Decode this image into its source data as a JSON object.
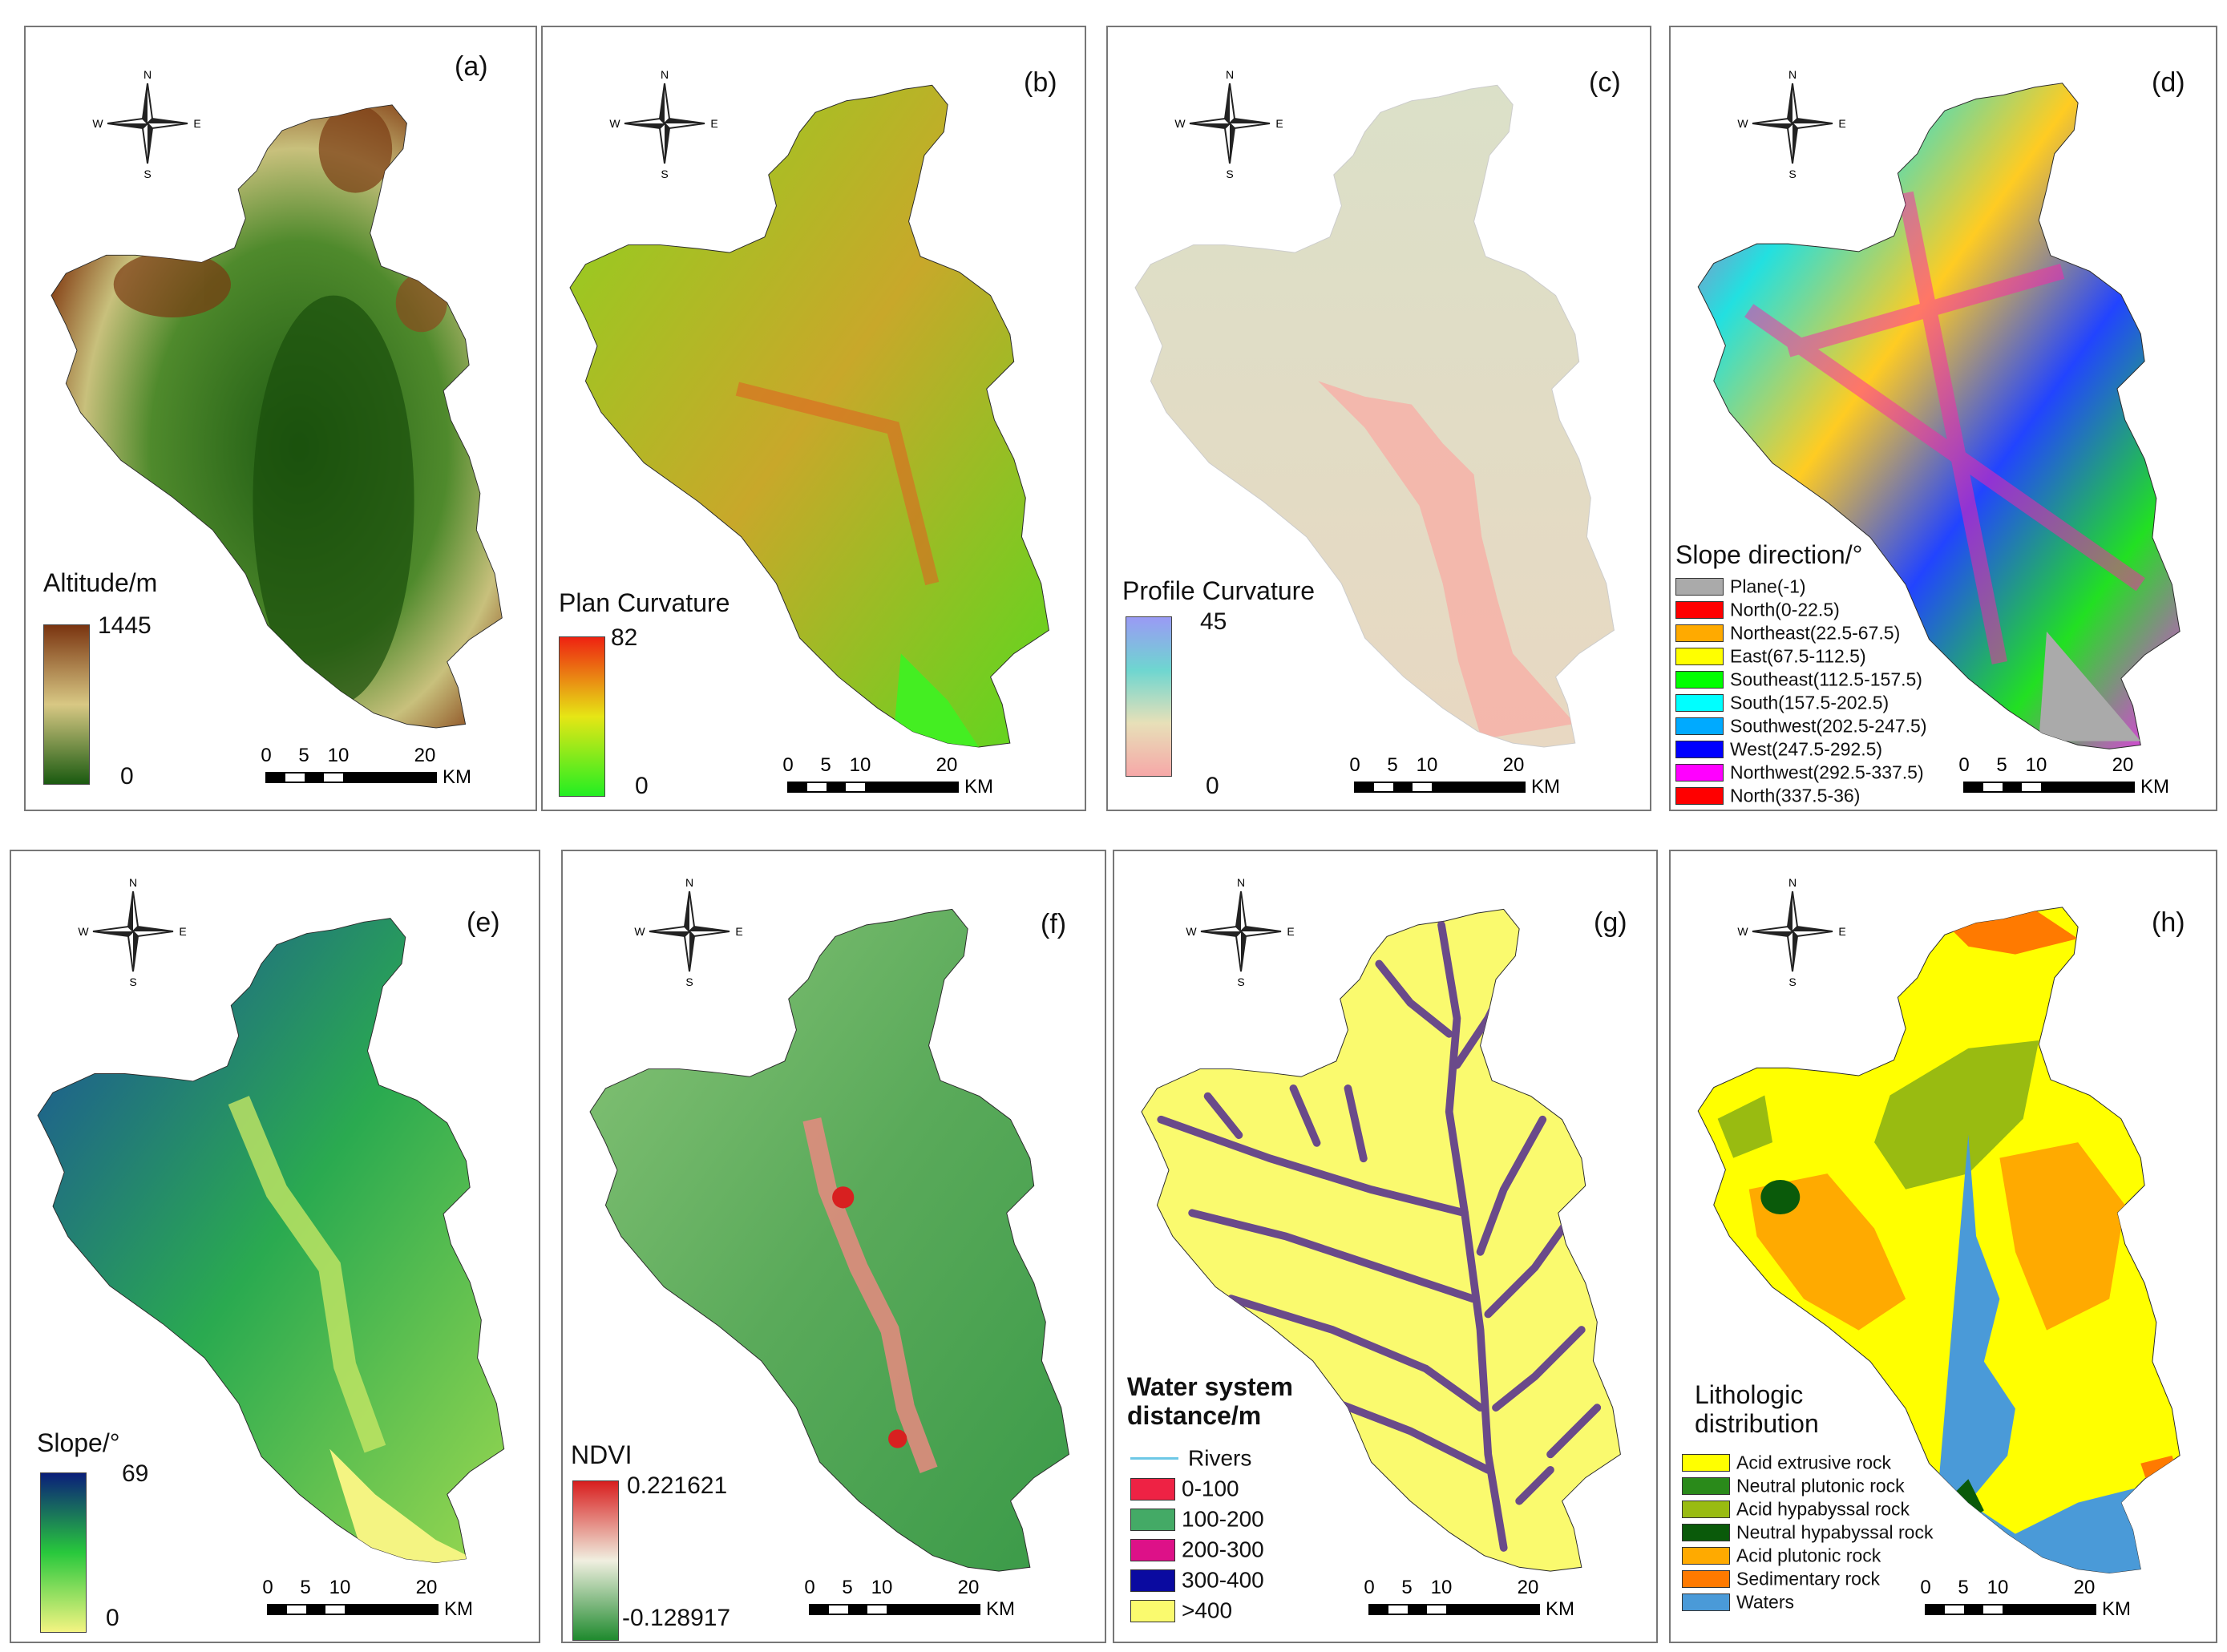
{
  "compass": {
    "n": "N",
    "s": "S",
    "e": "E",
    "w": "W"
  },
  "scale": {
    "ticks": [
      "0",
      "5",
      "10",
      "20"
    ],
    "unit_km": "KM"
  },
  "panels": [
    {
      "id": "a",
      "label": "(a)",
      "legend_title": "Altitude/m",
      "legend_max": "1445",
      "legend_min": "0",
      "colors": {
        "low": "#1a5a10",
        "mid": "#d8c884",
        "high": "#7a3410"
      }
    },
    {
      "id": "b",
      "label": "(b)",
      "legend_title": "Plan Curvature",
      "legend_max": "82",
      "legend_min": "0",
      "colors": {
        "low": "#22ee22",
        "mid": "#e6e615",
        "high": "#ee2211"
      }
    },
    {
      "id": "c",
      "label": "(c)",
      "legend_title": "Profile Curvature",
      "legend_max": "45",
      "legend_min": "0",
      "colors": {
        "low": "#f6a8a8",
        "mid": "#e7e0b8",
        "high": "#9a9af5"
      }
    },
    {
      "id": "d",
      "label": "(d)",
      "legend_title": "Slope direction/°",
      "categories": [
        {
          "label": "Plane(-1)",
          "color": "#aaaaaa"
        },
        {
          "label": "North(0-22.5)",
          "color": "#ff0000"
        },
        {
          "label": "Northeast(22.5-67.5)",
          "color": "#ffaa00"
        },
        {
          "label": "East(67.5-112.5)",
          "color": "#ffff00"
        },
        {
          "label": "Southeast(112.5-157.5)",
          "color": "#00ff00"
        },
        {
          "label": "South(157.5-202.5)",
          "color": "#00ffff"
        },
        {
          "label": "Southwest(202.5-247.5)",
          "color": "#00aaff"
        },
        {
          "label": "West(247.5-292.5)",
          "color": "#0000ff"
        },
        {
          "label": "Northwest(292.5-337.5)",
          "color": "#ff00ff"
        },
        {
          "label": "North(337.5-36)",
          "color": "#ff0000"
        }
      ]
    },
    {
      "id": "e",
      "label": "(e)",
      "legend_title": "Slope/°",
      "legend_max": "69",
      "legend_min": "0",
      "colors": {
        "low": "#f4f482",
        "mid": "#28c83c",
        "high": "#0a1e7a"
      }
    },
    {
      "id": "f",
      "label": "(f)",
      "legend_title": "NDVI",
      "legend_max": "0.221621",
      "legend_min": "-0.128917",
      "colors": {
        "low": "#1f8a2e",
        "mid": "#f0efe0",
        "high": "#d81e1e"
      }
    },
    {
      "id": "g",
      "label": "(g)",
      "legend_title_1": "Water system",
      "legend_title_2": "distance/m",
      "rivers_label": "Rivers",
      "categories": [
        {
          "label": "0-100",
          "color": "#ee2244"
        },
        {
          "label": "100-200",
          "color": "#44aa66"
        },
        {
          "label": "200-300",
          "color": "#dd1188"
        },
        {
          "label": "300-400",
          "color": "#0a0aa0"
        },
        {
          "label": ">400",
          "color": "#fafa6e"
        }
      ]
    },
    {
      "id": "h",
      "label": "(h)",
      "legend_title_1": "Lithologic",
      "legend_title_2": "distribution",
      "categories": [
        {
          "label": "Acid extrusive rock",
          "color": "#ffff00"
        },
        {
          "label": "Neutral plutonic rock",
          "color": "#2a8a1a"
        },
        {
          "label": "Acid hypabyssal rock",
          "color": "#99bb11"
        },
        {
          "label": "Neutral hypabyssal rock",
          "color": "#0a5a0a"
        },
        {
          "label": "Acid plutonic rock",
          "color": "#ffaa00"
        },
        {
          "label": "Sedimentary rock",
          "color": "#ff7a00"
        },
        {
          "label": "Waters",
          "color": "#4a9ad8"
        }
      ]
    }
  ]
}
